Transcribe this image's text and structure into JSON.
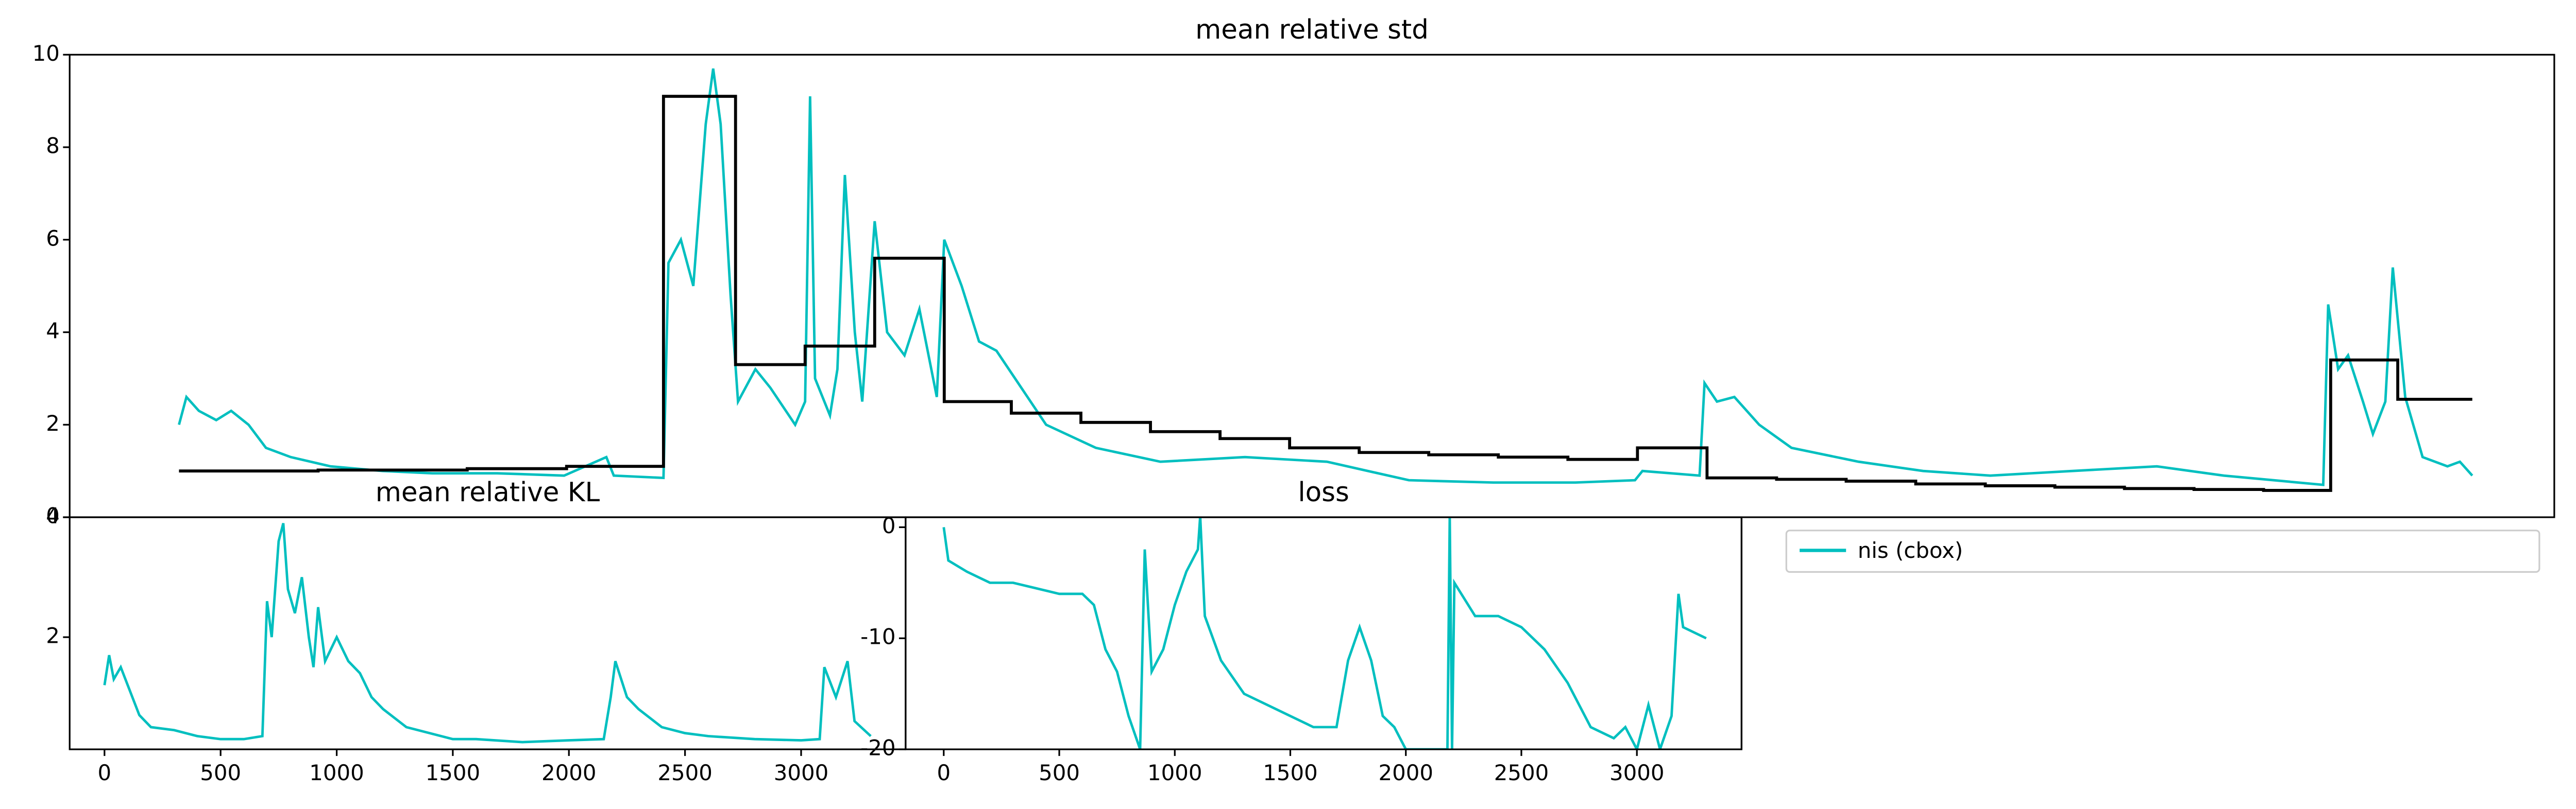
{
  "chart_data": [
    {
      "type": "line",
      "title": "mean relative std",
      "xlim": [
        0,
        1000
      ],
      "ylim": [
        0,
        10
      ],
      "yticks": [
        0,
        2,
        4,
        6,
        8,
        10
      ],
      "series": [
        {
          "color": "#00bfbf",
          "drawstyle": "default",
          "x": [
            44,
            47,
            52,
            59,
            65,
            72,
            79,
            89,
            105,
            126,
            146,
            172,
            199,
            216,
            219,
            239,
            241,
            246,
            251,
            256,
            259,
            262,
            266,
            269,
            276,
            282,
            292,
            296,
            298,
            300,
            306,
            309,
            312,
            316,
            319,
            324,
            329,
            336,
            342,
            349,
            352,
            359,
            366,
            373,
            383,
            393,
            413,
            439,
            473,
            506,
            539,
            573,
            606,
            630,
            633,
            656,
            658,
            663,
            670,
            680,
            693,
            720,
            746,
            773,
            806,
            840,
            867,
            907,
            909,
            913,
            917,
            923,
            927,
            932,
            935,
            940,
            947,
            957,
            962,
            967
          ],
          "values": [
            2.0,
            2.6,
            2.3,
            2.1,
            2.3,
            2.0,
            1.5,
            1.3,
            1.1,
            1.0,
            0.95,
            0.95,
            0.9,
            1.3,
            0.9,
            0.85,
            5.5,
            6.0,
            5.0,
            8.5,
            9.7,
            8.5,
            4.8,
            2.5,
            3.2,
            2.8,
            2.0,
            2.5,
            9.1,
            3.0,
            2.2,
            3.2,
            7.4,
            4.0,
            2.5,
            6.4,
            4.0,
            3.5,
            4.5,
            2.6,
            6.0,
            5.0,
            3.8,
            3.6,
            2.8,
            2.0,
            1.5,
            1.2,
            1.3,
            1.2,
            0.8,
            0.75,
            0.75,
            0.8,
            1.0,
            0.9,
            2.9,
            2.5,
            2.6,
            2.0,
            1.5,
            1.2,
            1.0,
            0.9,
            1.0,
            1.1,
            0.9,
            0.7,
            4.6,
            3.2,
            3.5,
            2.5,
            1.8,
            2.5,
            5.4,
            2.6,
            1.3,
            1.1,
            1.2,
            0.9
          ]
        },
        {
          "color": "#000000",
          "drawstyle": "steps-post",
          "x": [
            44,
            100,
            160,
            200,
            239,
            268,
            296,
            324,
            352,
            379,
            407,
            435,
            463,
            491,
            519,
            547,
            575,
            603,
            631,
            659,
            687,
            715,
            743,
            771,
            799,
            827,
            855,
            883,
            910,
            937,
            967
          ],
          "values": [
            1.0,
            1.02,
            1.05,
            1.1,
            9.1,
            3.3,
            3.7,
            5.6,
            2.5,
            2.25,
            2.05,
            1.85,
            1.7,
            1.5,
            1.4,
            1.35,
            1.3,
            1.25,
            1.5,
            0.85,
            0.82,
            0.78,
            0.72,
            0.68,
            0.65,
            0.62,
            0.6,
            0.58,
            3.4,
            2.55,
            2.55
          ]
        }
      ]
    },
    {
      "type": "line",
      "title": "mean relative KL",
      "xlim": [
        -150,
        3450
      ],
      "ylim": [
        0.13,
        4.0
      ],
      "yticks": [
        2,
        4
      ],
      "xticks": [
        0,
        500,
        1000,
        1500,
        2000,
        2500,
        3000
      ],
      "series": [
        {
          "color": "#00bfbf",
          "drawstyle": "default",
          "x": [
            0,
            20,
            40,
            70,
            100,
            150,
            200,
            300,
            400,
            500,
            600,
            680,
            700,
            720,
            750,
            770,
            790,
            820,
            850,
            880,
            900,
            920,
            950,
            1000,
            1050,
            1100,
            1150,
            1200,
            1300,
            1400,
            1500,
            1600,
            1800,
            2000,
            2150,
            2180,
            2200,
            2250,
            2300,
            2400,
            2500,
            2600,
            2800,
            3000,
            3080,
            3100,
            3150,
            3200,
            3230,
            3300
          ],
          "values": [
            1.2,
            1.7,
            1.3,
            1.5,
            1.2,
            0.7,
            0.5,
            0.45,
            0.35,
            0.3,
            0.3,
            0.35,
            2.6,
            2.0,
            3.6,
            3.9,
            2.8,
            2.4,
            3.0,
            2.0,
            1.5,
            2.5,
            1.6,
            2.0,
            1.6,
            1.4,
            1.0,
            0.8,
            0.5,
            0.4,
            0.3,
            0.3,
            0.25,
            0.28,
            0.3,
            1.0,
            1.6,
            1.0,
            0.8,
            0.5,
            0.4,
            0.35,
            0.3,
            0.28,
            0.3,
            1.5,
            1.0,
            1.6,
            0.6,
            0.35
          ]
        }
      ]
    },
    {
      "type": "line",
      "title": "loss",
      "xlim": [
        -165,
        3453
      ],
      "ylim": [
        -20,
        0.9
      ],
      "yticks": [
        0,
        -10,
        -20
      ],
      "xticks": [
        0,
        500,
        1000,
        1500,
        2000,
        2500,
        3000
      ],
      "series": [
        {
          "color": "#00bfbf",
          "drawstyle": "default",
          "x": [
            0,
            20,
            100,
            200,
            300,
            400,
            500,
            600,
            650,
            700,
            750,
            800,
            850,
            870,
            900,
            950,
            1000,
            1050,
            1100,
            1110,
            1130,
            1200,
            1300,
            1400,
            1500,
            1600,
            1700,
            1750,
            1800,
            1850,
            1900,
            1950,
            2000,
            2180,
            2190,
            2200,
            2210,
            2300,
            2400,
            2500,
            2600,
            2700,
            2800,
            2900,
            2950,
            3000,
            3050,
            3100,
            3150,
            3180,
            3200,
            3300
          ],
          "values": [
            0,
            -3,
            -4,
            -5,
            -5,
            -5.5,
            -6,
            -6,
            -7,
            -11,
            -13,
            -17,
            -20,
            -2,
            -13,
            -11,
            -7,
            -4,
            -2,
            1,
            -8,
            -12,
            -15,
            -16,
            -17,
            -18,
            -18,
            -12,
            -9,
            -12,
            -17,
            -18,
            -20,
            -20,
            1,
            -20,
            -5,
            -8,
            -8,
            -9,
            -11,
            -14,
            -18,
            -19,
            -18,
            -20,
            -16,
            -20,
            -17,
            -6,
            -9,
            -10
          ]
        }
      ]
    }
  ],
  "legend": {
    "label": "nis (cbox)",
    "color": "#00bfbf"
  }
}
